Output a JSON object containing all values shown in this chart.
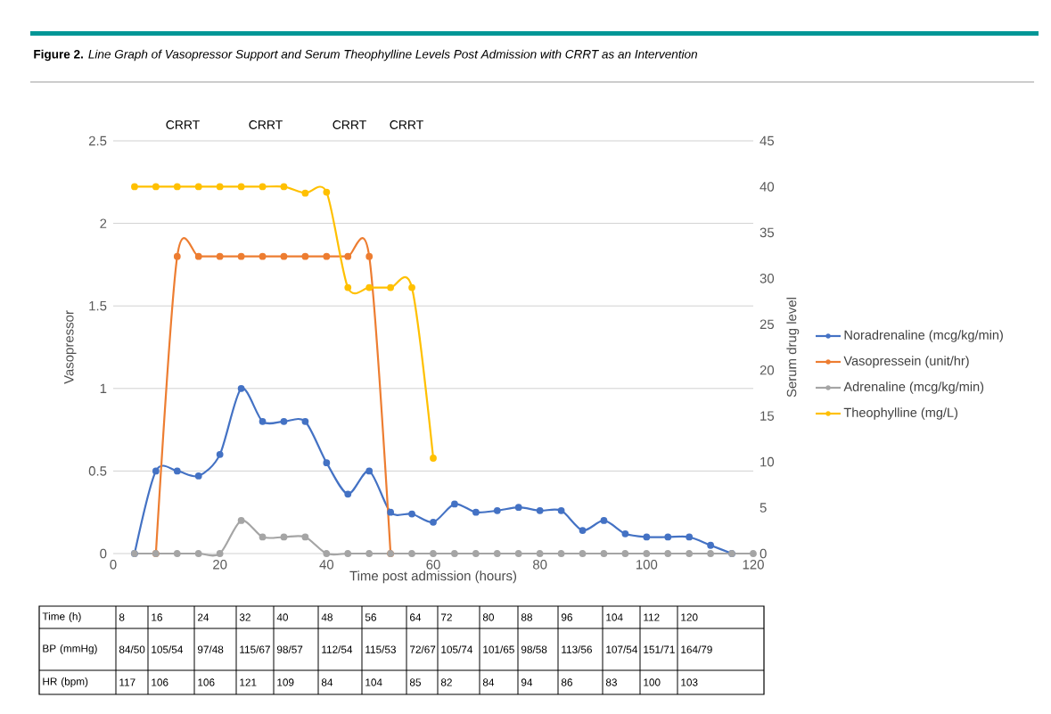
{
  "chart_data": {
    "type": "line",
    "title": "**Figure 2.** *Line Graph of Vasopressor Support and Serum Theophylline Levels Post Admission with CRRT as an Intervention*",
    "xlabel": "Time post admission (hours)",
    "ylabel": "Vasopressor",
    "y2label": "Serum drug level",
    "xlim": [
      0,
      120
    ],
    "xticks": [
      0,
      20,
      40,
      60,
      80,
      100,
      120
    ],
    "ylim": [
      0,
      2.5
    ],
    "yticks": [
      0,
      0.5,
      1,
      1.5,
      2,
      2.5
    ],
    "y2lim": [
      0,
      45
    ],
    "y2ticks": [
      0,
      5,
      10,
      15,
      20,
      25,
      30,
      35,
      40,
      45
    ],
    "grid": "y",
    "legend": "right",
    "marker": "circle",
    "line_style": "solid",
    "series": [
      {
        "name": "Noradrenaline (mcg/kg/min)",
        "color": "#4472c4",
        "x": [
          4,
          8,
          12,
          16,
          20,
          24,
          28,
          32,
          36,
          40,
          44,
          48,
          52,
          56,
          60,
          64,
          68,
          72,
          76,
          80,
          84,
          88,
          92,
          96,
          100,
          104,
          108,
          112,
          116
        ],
        "values": [
          0,
          0.5,
          0.5,
          0.47,
          0.6,
          1.0,
          0.8,
          0.8,
          0.8,
          0.55,
          0.36,
          0.5,
          0.25,
          0.24,
          0.19,
          0.3,
          0.25,
          0.26,
          0.28,
          0.26,
          0.26,
          0.14,
          0.2,
          0.12,
          0.1,
          0.1,
          0.1,
          0.05,
          0
        ]
      },
      {
        "name": "Vasopressein (unit/hr)",
        "color": "#ed7d31",
        "x": [
          8,
          12,
          16,
          20,
          24,
          28,
          32,
          36,
          40,
          44,
          48,
          52
        ],
        "values": [
          0,
          1.8,
          1.8,
          1.8,
          1.8,
          1.8,
          1.8,
          1.8,
          1.8,
          1.8,
          1.8,
          0
        ]
      },
      {
        "name": "Adrenaline (mcg/kg/min)",
        "color": "#a5a5a5",
        "x": [
          4,
          8,
          12,
          16,
          20,
          24,
          28,
          32,
          36,
          40,
          44,
          48,
          52,
          56,
          60,
          64,
          68,
          72,
          76,
          80,
          84,
          88,
          92,
          96,
          100,
          104,
          108,
          112,
          116,
          120
        ],
        "values": [
          0,
          0,
          0,
          0,
          0,
          0.2,
          0.1,
          0.1,
          0.1,
          0,
          0,
          0,
          0,
          0,
          0,
          0,
          0,
          0,
          0,
          0,
          0,
          0,
          0,
          0,
          0,
          0,
          0,
          0,
          0,
          0
        ]
      },
      {
        "name": "Theophylline (mg/L)",
        "color": "#ffc000",
        "axis": "y2",
        "x": [
          4,
          8,
          12,
          16,
          20,
          24,
          28,
          32,
          36,
          40,
          44,
          48,
          52,
          56,
          60
        ],
        "values": [
          40,
          40,
          40,
          40,
          40,
          40,
          40,
          40,
          39.3,
          39.4,
          29,
          29,
          29,
          29,
          10.4
        ]
      }
    ],
    "annotations": [
      "CRRT",
      "CRRT",
      "CRRT",
      "CRRT",
      "Time (h)",
      "8",
      "16",
      "24",
      "32",
      "40",
      "48",
      "56",
      "64",
      "72",
      "80",
      "88",
      "96",
      "104",
      "112",
      "120",
      "BP (mmHg)",
      "84/50",
      "105/54",
      "97/48",
      "115/67",
      "98/57",
      "112/54",
      "115/53",
      "72/67",
      "105/74",
      "101/65",
      "98/58",
      "113/56",
      "107/54",
      "151/71",
      "164/79",
      "HR (bpm)",
      "117",
      "106",
      "106",
      "121",
      "109",
      "84",
      "104",
      "85",
      "82",
      "84",
      "94",
      "86",
      "83",
      "100",
      "103"
    ]
  }
}
